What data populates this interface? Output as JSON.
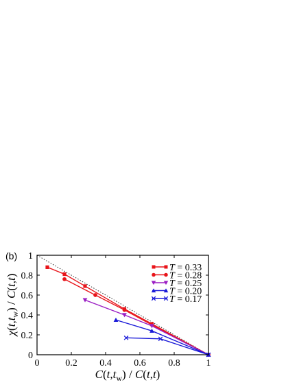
{
  "panel_label": "(b)",
  "chart_data": {
    "type": "line",
    "xlabel": "C(t,t_w) / C(t,t)",
    "ylabel": "χ(t,t_w) / C(t,t)",
    "xlim": [
      0,
      1
    ],
    "ylim": [
      0,
      1
    ],
    "xticks": [
      "0",
      "0.2",
      "0.4",
      "0.6",
      "0.8",
      "1"
    ],
    "yticks": [
      "0",
      "0.2",
      "0.4",
      "0.6",
      "0.8",
      "1"
    ],
    "grid": false,
    "legend_position": "top-right",
    "reference_line": {
      "style": "dotted",
      "color": "#333333",
      "points": [
        [
          0,
          1
        ],
        [
          1,
          0
        ]
      ]
    },
    "series": [
      {
        "name": "T = 0.33",
        "label_var": "T",
        "label_value": "= 0.33",
        "color": "#e8141a",
        "marker": "square",
        "points": [
          [
            0.06,
            0.88
          ],
          [
            0.16,
            0.81
          ],
          [
            0.28,
            0.69
          ],
          [
            0.51,
            0.46
          ],
          [
            0.67,
            0.31
          ],
          [
            1.0,
            0.0
          ]
        ]
      },
      {
        "name": "T = 0.28",
        "label_var": "T",
        "label_value": "= 0.28",
        "color": "#e8141a",
        "marker": "circle",
        "points": [
          [
            0.16,
            0.76
          ],
          [
            0.34,
            0.6
          ],
          [
            0.51,
            0.45
          ],
          [
            0.67,
            0.3
          ],
          [
            1.0,
            0.0
          ]
        ]
      },
      {
        "name": "T = 0.25",
        "label_var": "T",
        "label_value": "= 0.25",
        "color": "#9b1fc4",
        "marker": "triangle-down",
        "points": [
          [
            0.28,
            0.55
          ],
          [
            0.51,
            0.4
          ],
          [
            0.67,
            0.29
          ],
          [
            1.0,
            0.0
          ]
        ]
      },
      {
        "name": "T = 0.20",
        "label_var": "T",
        "label_value": "= 0.20",
        "color": "#1a1ad8",
        "marker": "triangle-up",
        "points": [
          [
            0.46,
            0.35
          ],
          [
            0.67,
            0.24
          ],
          [
            1.0,
            0.0
          ]
        ]
      },
      {
        "name": "T = 0.17",
        "label_var": "T",
        "label_value": "= 0.17",
        "color": "#1a1ad8",
        "marker": "cross",
        "points": [
          [
            0.52,
            0.17
          ],
          [
            0.72,
            0.16
          ],
          [
            1.0,
            0.0
          ]
        ]
      }
    ]
  }
}
